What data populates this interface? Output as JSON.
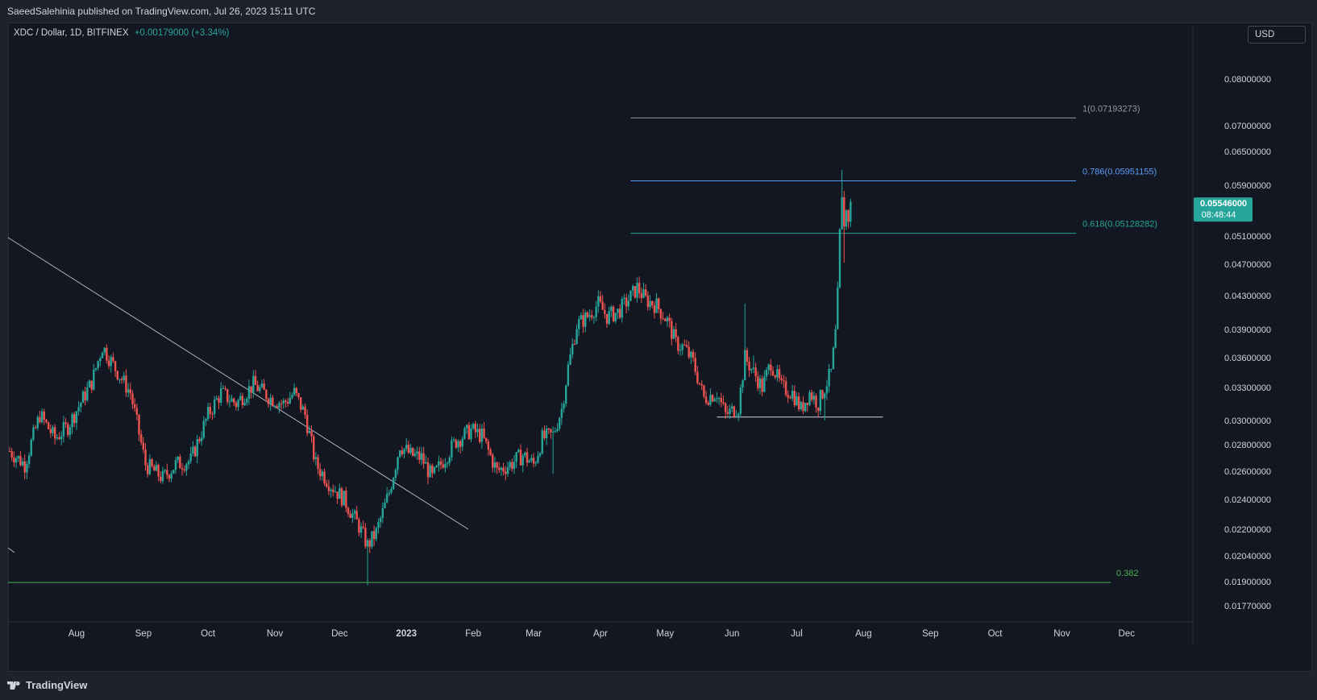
{
  "header": {
    "publish_text": "SaeedSalehinia published on TradingView.com, Jul 26, 2023 15:11 UTC"
  },
  "legend": {
    "symbol_text": "XDC / Dollar, 1D, BITFINEX",
    "change_text": "+0.00179000 (+3.34%)"
  },
  "currency_button": "USD",
  "footer": {
    "brand": "TradingView"
  },
  "colors": {
    "background": "#131722",
    "up": "#26a69a",
    "down": "#ef5350",
    "grid_text": "#d1d4dc",
    "fib_top": "#9598a1",
    "fib_786": "#5b9cf6",
    "fib_618": "#26a69a",
    "fib_382": "#4caf50"
  },
  "chart_data": {
    "type": "candlestick",
    "symbol": "XDC / Dollar",
    "interval": "1D",
    "exchange": "BITFINEX",
    "currency": "USD",
    "last_price": "0.05546000",
    "countdown": "08:48:44",
    "y_ticks": [
      "0.08000000",
      "0.07000000",
      "0.06500000",
      "0.05900000",
      "0.05100000",
      "0.04700000",
      "0.04300000",
      "0.03900000",
      "0.03600000",
      "0.03300000",
      "0.03000000",
      "0.02800000",
      "0.02600000",
      "0.02400000",
      "0.02200000",
      "0.02040000",
      "0.01900000",
      "0.01770000"
    ],
    "x_ticks": [
      "Aug",
      "Sep",
      "Oct",
      "Nov",
      "Dec",
      "2023",
      "Feb",
      "Mar",
      "Apr",
      "May",
      "Jun",
      "Jul",
      "Aug",
      "Sep",
      "Oct",
      "Nov",
      "Dec"
    ],
    "fib_levels": [
      {
        "label": "1(0.07193273)",
        "value": 0.07193273
      },
      {
        "label": "0.786(0.05951155)",
        "value": 0.05951155
      },
      {
        "label": "0.618(0.05128282)",
        "value": 0.05128282
      },
      {
        "label": "0.382",
        "value": 0.01895
      }
    ],
    "support_level": 0.0303,
    "trendline": [
      {
        "date": "2022-07-01",
        "value": 0.0515
      },
      {
        "date": "2022-12-31",
        "value": 0.0218
      }
    ],
    "price_anchors": [
      {
        "date": "2022-07-01",
        "value": 0.0275
      },
      {
        "date": "2022-07-08",
        "value": 0.0265
      },
      {
        "date": "2022-07-15",
        "value": 0.0305
      },
      {
        "date": "2022-07-22",
        "value": 0.0285
      },
      {
        "date": "2022-07-28",
        "value": 0.0295
      },
      {
        "date": "2022-08-08",
        "value": 0.0335
      },
      {
        "date": "2022-08-13",
        "value": 0.0372
      },
      {
        "date": "2022-08-20",
        "value": 0.0345
      },
      {
        "date": "2022-08-26",
        "value": 0.0325
      },
      {
        "date": "2022-09-02",
        "value": 0.0265
      },
      {
        "date": "2022-09-10",
        "value": 0.0255
      },
      {
        "date": "2022-09-16",
        "value": 0.0265
      },
      {
        "date": "2022-09-23",
        "value": 0.0268
      },
      {
        "date": "2022-10-01",
        "value": 0.0305
      },
      {
        "date": "2022-10-07",
        "value": 0.0325
      },
      {
        "date": "2022-10-14",
        "value": 0.0315
      },
      {
        "date": "2022-10-22",
        "value": 0.0333
      },
      {
        "date": "2022-10-30",
        "value": 0.032
      },
      {
        "date": "2022-11-05",
        "value": 0.0315
      },
      {
        "date": "2022-11-10",
        "value": 0.0325
      },
      {
        "date": "2022-11-15",
        "value": 0.0305
      },
      {
        "date": "2022-11-20",
        "value": 0.0265
      },
      {
        "date": "2022-11-27",
        "value": 0.025
      },
      {
        "date": "2022-12-03",
        "value": 0.024
      },
      {
        "date": "2022-12-10",
        "value": 0.0222
      },
      {
        "date": "2022-12-14",
        "value": 0.021
      },
      {
        "date": "2022-12-18",
        "value": 0.0218
      },
      {
        "date": "2022-12-24",
        "value": 0.0245
      },
      {
        "date": "2022-12-29",
        "value": 0.028
      },
      {
        "date": "2023-01-03",
        "value": 0.0272
      },
      {
        "date": "2023-01-08",
        "value": 0.027
      },
      {
        "date": "2023-01-13",
        "value": 0.0255
      },
      {
        "date": "2023-01-18",
        "value": 0.0268
      },
      {
        "date": "2023-01-24",
        "value": 0.0283
      },
      {
        "date": "2023-01-31",
        "value": 0.0292
      },
      {
        "date": "2023-02-05",
        "value": 0.0287
      },
      {
        "date": "2023-02-12",
        "value": 0.026
      },
      {
        "date": "2023-02-18",
        "value": 0.0265
      },
      {
        "date": "2023-02-24",
        "value": 0.0272
      },
      {
        "date": "2023-03-01",
        "value": 0.0265
      },
      {
        "date": "2023-03-05",
        "value": 0.0285
      },
      {
        "date": "2023-03-10",
        "value": 0.0288
      },
      {
        "date": "2023-03-14",
        "value": 0.031
      },
      {
        "date": "2023-03-17",
        "value": 0.035
      },
      {
        "date": "2023-03-21",
        "value": 0.0395
      },
      {
        "date": "2023-03-26",
        "value": 0.0405
      },
      {
        "date": "2023-03-31",
        "value": 0.042
      },
      {
        "date": "2023-04-04",
        "value": 0.0405
      },
      {
        "date": "2023-04-09",
        "value": 0.041
      },
      {
        "date": "2023-04-14",
        "value": 0.0425
      },
      {
        "date": "2023-04-18",
        "value": 0.044
      },
      {
        "date": "2023-04-22",
        "value": 0.0425
      },
      {
        "date": "2023-04-27",
        "value": 0.0418
      },
      {
        "date": "2023-05-02",
        "value": 0.04
      },
      {
        "date": "2023-05-06",
        "value": 0.0375
      },
      {
        "date": "2023-05-10",
        "value": 0.037
      },
      {
        "date": "2023-05-14",
        "value": 0.0355
      },
      {
        "date": "2023-05-19",
        "value": 0.032
      },
      {
        "date": "2023-05-25",
        "value": 0.0325
      },
      {
        "date": "2023-05-29",
        "value": 0.0305
      },
      {
        "date": "2023-06-04",
        "value": 0.0312
      },
      {
        "date": "2023-06-07",
        "value": 0.036
      },
      {
        "date": "2023-06-11",
        "value": 0.0345
      },
      {
        "date": "2023-06-15",
        "value": 0.033
      },
      {
        "date": "2023-06-19",
        "value": 0.0355
      },
      {
        "date": "2023-06-24",
        "value": 0.033
      },
      {
        "date": "2023-06-29",
        "value": 0.0325
      },
      {
        "date": "2023-07-03",
        "value": 0.031
      },
      {
        "date": "2023-07-07",
        "value": 0.0325
      },
      {
        "date": "2023-07-11",
        "value": 0.0315
      },
      {
        "date": "2023-07-14",
        "value": 0.033
      },
      {
        "date": "2023-07-17",
        "value": 0.0345
      },
      {
        "date": "2023-07-19",
        "value": 0.0385
      },
      {
        "date": "2023-07-20",
        "value": 0.043
      },
      {
        "date": "2023-07-21",
        "value": 0.051
      },
      {
        "date": "2023-07-22",
        "value": 0.056
      },
      {
        "date": "2023-07-23",
        "value": 0.053
      },
      {
        "date": "2023-07-24",
        "value": 0.0545
      },
      {
        "date": "2023-07-25",
        "value": 0.0536
      },
      {
        "date": "2023-07-26",
        "value": 0.05546
      }
    ]
  }
}
